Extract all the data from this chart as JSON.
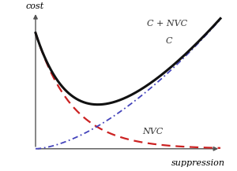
{
  "xlabel": "suppression",
  "ylabel": "cost",
  "background_color": "#ffffff",
  "curve_C_NVC_color": "#111111",
  "curve_C_color": "#4444bb",
  "curve_NVC_color": "#cc2222",
  "axis_color": "#555555",
  "label_color": "#333333",
  "label_C_NVC": "C + NVC",
  "label_C": "C",
  "label_NVC": "NVC",
  "figsize": [
    3.0,
    2.17
  ],
  "dpi": 100,
  "nvc_amp": 0.85,
  "nvc_decay": 5.0,
  "c_slope": 0.95,
  "c_power": 1.6
}
